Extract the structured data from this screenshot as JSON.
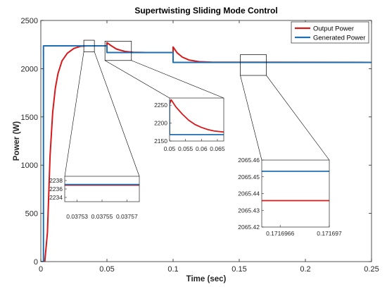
{
  "colors": {
    "output": "#d7191c",
    "generated": "#1f6fb5",
    "axis": "#262626",
    "box": "#000000"
  },
  "chart_data": [
    {
      "id": "main",
      "type": "line",
      "title": "Supertwisting Sliding Mode Control",
      "xlabel": "Time (sec)",
      "ylabel": "Power (W)",
      "xlim": [
        0,
        0.25
      ],
      "ylim": [
        0,
        2500
      ],
      "xticks": [
        0,
        0.05,
        0.1,
        0.15,
        0.2,
        0.25
      ],
      "xticklabels": [
        "0",
        "0.05",
        "0.1",
        "0.15",
        "0.2",
        "0.25"
      ],
      "yticks": [
        0,
        500,
        1000,
        1500,
        2000,
        2500
      ],
      "yticklabels": [
        "0",
        "500",
        "1000",
        "1500",
        "2000",
        "2500"
      ],
      "legend": {
        "placement": "top-right",
        "entries": [
          "Output Power",
          "Generated Power"
        ]
      },
      "series": [
        {
          "name": "Output Power",
          "color": "output",
          "points": [
            [
              0,
              0
            ],
            [
              0.003,
              0
            ],
            [
              0.005,
              300
            ],
            [
              0.007,
              1100
            ],
            [
              0.009,
              1550
            ],
            [
              0.011,
              1800
            ],
            [
              0.013,
              1950
            ],
            [
              0.016,
              2080
            ],
            [
              0.02,
              2160
            ],
            [
              0.025,
              2210
            ],
            [
              0.03,
              2232
            ],
            [
              0.035,
              2237
            ],
            [
              0.05,
              2237
            ],
            [
              0.05,
              2270
            ],
            [
              0.053,
              2240
            ],
            [
              0.057,
              2205
            ],
            [
              0.06,
              2192
            ],
            [
              0.064,
              2178
            ],
            [
              0.07,
              2170
            ],
            [
              0.08,
              2167
            ],
            [
              0.1,
              2167
            ],
            [
              0.1,
              2225
            ],
            [
              0.103,
              2165
            ],
            [
              0.107,
              2120
            ],
            [
              0.112,
              2090
            ],
            [
              0.12,
              2072
            ],
            [
              0.13,
              2067
            ],
            [
              0.25,
              2065.4
            ]
          ]
        },
        {
          "name": "Generated Power",
          "color": "generated",
          "points": [
            [
              0,
              0
            ],
            [
              0.002,
              0
            ],
            [
              0.002,
              2237
            ],
            [
              0.05,
              2237
            ],
            [
              0.05,
              2167
            ],
            [
              0.1,
              2167
            ],
            [
              0.1,
              2065.45
            ],
            [
              0.25,
              2065.45
            ]
          ]
        }
      ]
    },
    {
      "id": "inset1",
      "type": "line",
      "xlim": [
        0.03752,
        0.03758
      ],
      "ylim": [
        2233,
        2239
      ],
      "xticks": [
        0.03753,
        0.03755,
        0.03757
      ],
      "xticklabels": [
        "0.03753",
        "0.03755",
        "0.03757"
      ],
      "yticks": [
        2234,
        2236,
        2238
      ],
      "yticklabels": [
        "2234",
        "2236",
        "2238"
      ],
      "series": [
        {
          "name": "Output Power",
          "color": "output",
          "points": [
            [
              0.03752,
              2236.9
            ],
            [
              0.03758,
              2236.9
            ]
          ]
        },
        {
          "name": "Generated Power",
          "color": "generated",
          "points": [
            [
              0.03752,
              2237.05
            ],
            [
              0.03758,
              2237.05
            ]
          ]
        }
      ]
    },
    {
      "id": "inset2",
      "type": "line",
      "xlim": [
        0.05,
        0.067
      ],
      "ylim": [
        2150,
        2270
      ],
      "xticks": [
        0.05,
        0.055,
        0.06,
        0.065
      ],
      "xticklabels": [
        "0.05",
        "0.055",
        "0.06",
        "0.065"
      ],
      "yticks": [
        2150,
        2200,
        2250
      ],
      "yticklabels": [
        "2150",
        "2200",
        "2250"
      ],
      "series": [
        {
          "name": "Output Power",
          "color": "output",
          "points": [
            [
              0.05,
              2253
            ],
            [
              0.0505,
              2265
            ],
            [
              0.052,
              2245
            ],
            [
              0.054,
              2225
            ],
            [
              0.056,
              2208
            ],
            [
              0.058,
              2196
            ],
            [
              0.06,
              2188
            ],
            [
              0.062,
              2182
            ],
            [
              0.064,
              2178
            ],
            [
              0.067,
              2175
            ]
          ]
        },
        {
          "name": "Generated Power",
          "color": "generated",
          "points": [
            [
              0.05,
              2265
            ],
            [
              0.05,
              2168
            ],
            [
              0.067,
              2168
            ]
          ]
        }
      ]
    },
    {
      "id": "inset3",
      "type": "line",
      "xlim": [
        0.17169645,
        0.171697
      ],
      "ylim": [
        2065.42,
        2065.46
      ],
      "xticks": [
        0.1716966,
        0.171697
      ],
      "xticklabels": [
        "0.1716966",
        "0.171697"
      ],
      "yticks": [
        2065.42,
        2065.43,
        2065.44,
        2065.45,
        2065.46
      ],
      "yticklabels": [
        "2065.42",
        "2065.43",
        "2065.44",
        "2065.45",
        "2065.46"
      ],
      "series": [
        {
          "name": "Output Power",
          "color": "output",
          "points": [
            [
              0.17169645,
              2065.4358
            ],
            [
              0.171697,
              2065.4358
            ]
          ]
        },
        {
          "name": "Generated Power",
          "color": "generated",
          "points": [
            [
              0.17169645,
              2065.4533
            ],
            [
              0.171697,
              2065.4533
            ]
          ]
        }
      ]
    }
  ]
}
